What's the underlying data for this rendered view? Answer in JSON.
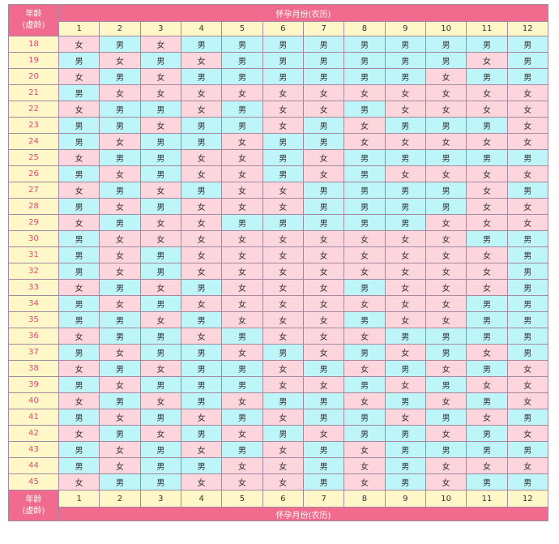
{
  "header": {
    "age_label_line1": "年龄",
    "age_label_line2": "(虚龄)",
    "title": "怀孕月份(农历)"
  },
  "footer": {
    "age_label_line1": "年龄",
    "age_label_line2": "(虚龄)",
    "title": "怀孕月份(农历)"
  },
  "colors": {
    "header_pink": "#f06b8d",
    "girl_cell": "#fdd5dc",
    "boy_cell": "#bef5f9",
    "label_cell": "#fff7c7",
    "age_text": "#e04870"
  },
  "months": [
    "1",
    "2",
    "3",
    "4",
    "5",
    "6",
    "7",
    "8",
    "9",
    "10",
    "11",
    "12"
  ],
  "rows": [
    {
      "age": "18",
      "cells": [
        "女",
        "男",
        "女",
        "男",
        "男",
        "男",
        "男",
        "男",
        "男",
        "男",
        "男",
        "男"
      ]
    },
    {
      "age": "19",
      "cells": [
        "男",
        "女",
        "男",
        "女",
        "男",
        "男",
        "男",
        "男",
        "男",
        "男",
        "女",
        "男"
      ]
    },
    {
      "age": "20",
      "cells": [
        "女",
        "男",
        "女",
        "男",
        "男",
        "男",
        "男",
        "男",
        "男",
        "女",
        "男",
        "男"
      ]
    },
    {
      "age": "21",
      "cells": [
        "男",
        "女",
        "女",
        "女",
        "女",
        "女",
        "女",
        "女",
        "女",
        "女",
        "女",
        "女"
      ]
    },
    {
      "age": "22",
      "cells": [
        "女",
        "男",
        "男",
        "女",
        "男",
        "女",
        "女",
        "男",
        "女",
        "女",
        "女",
        "女"
      ]
    },
    {
      "age": "23",
      "cells": [
        "男",
        "男",
        "女",
        "男",
        "男",
        "女",
        "男",
        "女",
        "男",
        "男",
        "男",
        "女"
      ]
    },
    {
      "age": "24",
      "cells": [
        "男",
        "女",
        "男",
        "男",
        "女",
        "男",
        "男",
        "女",
        "女",
        "女",
        "女",
        "女"
      ]
    },
    {
      "age": "25",
      "cells": [
        "女",
        "男",
        "男",
        "女",
        "女",
        "男",
        "女",
        "男",
        "男",
        "男",
        "男",
        "男"
      ]
    },
    {
      "age": "26",
      "cells": [
        "男",
        "女",
        "男",
        "女",
        "女",
        "男",
        "女",
        "男",
        "女",
        "女",
        "女",
        "女"
      ]
    },
    {
      "age": "27",
      "cells": [
        "女",
        "男",
        "女",
        "男",
        "女",
        "女",
        "男",
        "男",
        "男",
        "男",
        "女",
        "男"
      ]
    },
    {
      "age": "28",
      "cells": [
        "男",
        "女",
        "男",
        "女",
        "女",
        "女",
        "男",
        "男",
        "男",
        "男",
        "女",
        "女"
      ]
    },
    {
      "age": "29",
      "cells": [
        "女",
        "男",
        "女",
        "女",
        "男",
        "男",
        "男",
        "男",
        "男",
        "女",
        "女",
        "女"
      ]
    },
    {
      "age": "30",
      "cells": [
        "男",
        "女",
        "女",
        "女",
        "女",
        "女",
        "女",
        "女",
        "女",
        "女",
        "男",
        "男"
      ]
    },
    {
      "age": "31",
      "cells": [
        "男",
        "女",
        "男",
        "女",
        "女",
        "女",
        "女",
        "女",
        "女",
        "女",
        "女",
        "男"
      ]
    },
    {
      "age": "32",
      "cells": [
        "男",
        "女",
        "男",
        "女",
        "女",
        "女",
        "女",
        "女",
        "女",
        "女",
        "女",
        "男"
      ]
    },
    {
      "age": "33",
      "cells": [
        "女",
        "男",
        "女",
        "男",
        "女",
        "女",
        "女",
        "男",
        "女",
        "女",
        "女",
        "男"
      ]
    },
    {
      "age": "34",
      "cells": [
        "男",
        "女",
        "男",
        "女",
        "女",
        "女",
        "女",
        "女",
        "女",
        "女",
        "男",
        "男"
      ]
    },
    {
      "age": "35",
      "cells": [
        "男",
        "男",
        "女",
        "男",
        "女",
        "女",
        "女",
        "男",
        "女",
        "女",
        "男",
        "男"
      ]
    },
    {
      "age": "36",
      "cells": [
        "女",
        "男",
        "男",
        "女",
        "男",
        "女",
        "女",
        "女",
        "男",
        "男",
        "男",
        "男"
      ]
    },
    {
      "age": "37",
      "cells": [
        "男",
        "女",
        "男",
        "男",
        "女",
        "男",
        "女",
        "男",
        "女",
        "男",
        "女",
        "男"
      ]
    },
    {
      "age": "38",
      "cells": [
        "女",
        "男",
        "女",
        "男",
        "男",
        "女",
        "男",
        "女",
        "男",
        "女",
        "男",
        "女"
      ]
    },
    {
      "age": "39",
      "cells": [
        "男",
        "女",
        "男",
        "男",
        "男",
        "女",
        "女",
        "男",
        "女",
        "男",
        "女",
        "女"
      ]
    },
    {
      "age": "40",
      "cells": [
        "女",
        "男",
        "女",
        "男",
        "女",
        "男",
        "男",
        "女",
        "男",
        "女",
        "男",
        "女"
      ]
    },
    {
      "age": "41",
      "cells": [
        "男",
        "女",
        "男",
        "女",
        "男",
        "女",
        "男",
        "男",
        "女",
        "男",
        "女",
        "男"
      ]
    },
    {
      "age": "42",
      "cells": [
        "女",
        "男",
        "女",
        "男",
        "女",
        "男",
        "女",
        "男",
        "男",
        "女",
        "男",
        "女"
      ]
    },
    {
      "age": "43",
      "cells": [
        "男",
        "女",
        "男",
        "女",
        "男",
        "女",
        "男",
        "女",
        "男",
        "男",
        "男",
        "男"
      ]
    },
    {
      "age": "44",
      "cells": [
        "男",
        "女",
        "男",
        "男",
        "女",
        "女",
        "男",
        "女",
        "男",
        "女",
        "女",
        "女"
      ]
    },
    {
      "age": "45",
      "cells": [
        "女",
        "男",
        "男",
        "女",
        "女",
        "女",
        "男",
        "女",
        "男",
        "女",
        "男",
        "男"
      ]
    }
  ]
}
